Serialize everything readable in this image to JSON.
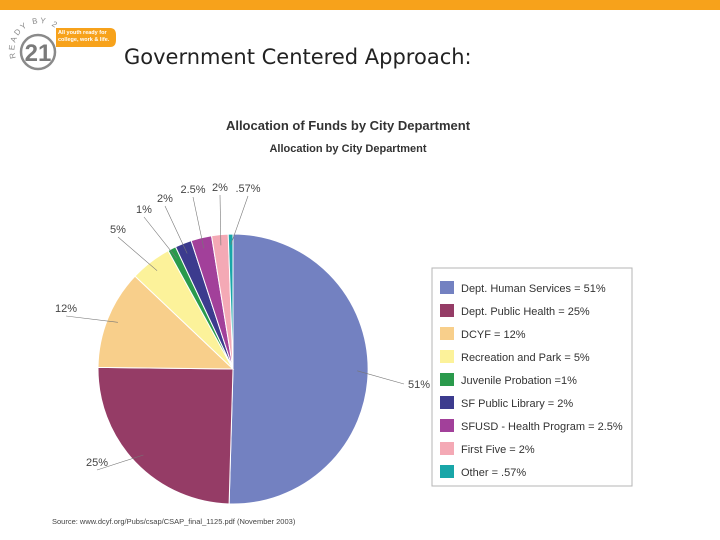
{
  "header": {
    "logo_text": "READY BY 21",
    "logo_number": "21",
    "tagline": "All youth ready for college, work & life.",
    "title": "Government Centered Approach:"
  },
  "colors": {
    "accent_bar": "#f7a21b",
    "logo_gray": "#8a8a8a",
    "tag_orange": "#f7a21b"
  },
  "chart_data": {
    "type": "pie",
    "title": "Allocation of Funds by City Department",
    "subtitle": "Allocation by City Department",
    "categories": [
      "Dept. Human Services",
      "Dept. Public Health",
      "DCYF",
      "Recreation and Park",
      "Juvenile Probation",
      "SF Public Library",
      "SFUSD - Health Program",
      "First Five",
      "Other"
    ],
    "values": [
      51,
      25,
      12,
      5,
      1,
      2,
      2.5,
      2,
      0.57
    ],
    "colors": [
      "#7381c1",
      "#953c66",
      "#f8cf8b",
      "#fcf29a",
      "#2a9a4c",
      "#3c3b8e",
      "#a2409a",
      "#f4a9b5",
      "#19a6a8"
    ],
    "slice_labels": [
      "51%",
      "25%",
      "12%",
      "5%",
      "1%",
      "2%",
      "2.5%",
      "2%",
      ".57%"
    ],
    "legend": [
      "Dept. Human Services  = 51%",
      "Dept. Public Health  = 25%",
      "DCYF  = 12%",
      "Recreation and Park  = 5%",
      "Juvenile Probation  =1%",
      "SF Public Library  = 2%",
      "SFUSD - Health Program = 2.5%",
      "First Five  = 2%",
      "Other = .57%"
    ],
    "legend_position": "right"
  },
  "source": "Source: www.dcyf.org/Pubs/csap/CSAP_final_1125.pdf (November 2003)"
}
